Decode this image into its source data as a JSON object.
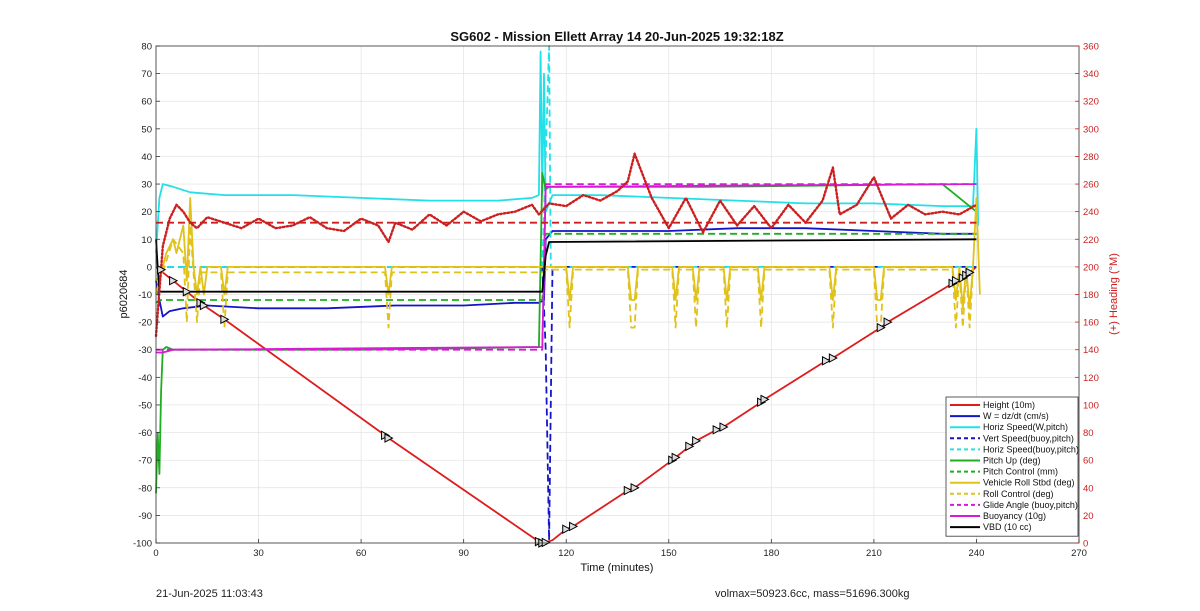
{
  "footer": {
    "timestamp": "21-Jun-2025 11:03:43",
    "volmax": "volmax=50923.6cc, mass=51696.300kg"
  },
  "chart_data": {
    "type": "line",
    "title": "SG602 - Mission Ellett Array 14 20-Jun-2025 19:32:18Z",
    "xlabel": "Time (minutes)",
    "ylabel": "p6020684",
    "y2label": "(+) Heading (°M)",
    "xlim": [
      0,
      270
    ],
    "ylim": [
      -100,
      80
    ],
    "y2lim": [
      0,
      360
    ],
    "xticks": [
      0,
      30,
      60,
      90,
      120,
      150,
      180,
      210,
      240,
      270
    ],
    "yticks": [
      -100,
      -90,
      -80,
      -70,
      -60,
      -50,
      -40,
      -30,
      -20,
      -10,
      0,
      10,
      20,
      30,
      40,
      50,
      60,
      70,
      80
    ],
    "y2ticks": [
      0,
      20,
      40,
      60,
      80,
      100,
      120,
      140,
      160,
      180,
      200,
      220,
      240,
      260,
      280,
      300,
      320,
      340,
      360
    ],
    "grid": true,
    "legend_position": "bottom-right",
    "colors": {
      "red": "#dd1c1c",
      "blue": "#1414c8",
      "cyan": "#22e0e8",
      "green": "#1fae1f",
      "yellow": "#e0c21a",
      "magenta": "#d61ad6",
      "black": "#000000",
      "heading": "#cc1f1f"
    },
    "series": [
      {
        "name": "Height (10m)",
        "color": "red",
        "style": "solid",
        "axis": "left",
        "x": [
          0,
          2,
          5,
          9,
          13,
          14,
          20,
          67,
          68,
          112,
          113,
          114,
          116,
          120,
          122,
          138,
          140,
          151,
          152,
          156,
          158,
          164,
          166,
          177,
          178,
          196,
          198,
          212,
          214,
          233,
          234,
          236,
          237,
          238,
          240
        ],
        "y": [
          0,
          -2,
          -5,
          -9,
          -13,
          -14,
          -19,
          -61,
          -62,
          -99.5,
          -100,
          -99.8,
          -99,
          -95,
          -94,
          -81,
          -80,
          -70,
          -69,
          -65,
          -63,
          -59,
          -58,
          -49,
          -48,
          -34,
          -33,
          -22,
          -20,
          -6,
          -5,
          -4,
          -3,
          -2,
          0
        ]
      },
      {
        "name": "W = dz/dt (cm/s)",
        "color": "blue",
        "style": "solid",
        "axis": "left",
        "x": [
          0,
          1,
          2,
          4,
          8,
          15,
          30,
          50,
          70,
          90,
          105,
          112,
          113.5,
          114,
          116,
          130,
          150,
          170,
          190,
          210,
          230,
          240
        ],
        "y": [
          -5,
          -12,
          -18,
          -16,
          -15,
          -14,
          -15,
          -15,
          -14,
          -14,
          -13,
          -13,
          -12,
          10,
          13,
          13,
          13,
          14,
          14,
          13,
          12,
          12
        ]
      },
      {
        "name": "Horiz Speed(W,pitch)",
        "color": "cyan",
        "style": "solid",
        "axis": "left",
        "x": [
          0,
          1,
          2,
          5,
          10,
          20,
          40,
          60,
          80,
          100,
          110,
          112,
          112.5,
          113,
          113.5,
          114,
          116,
          130,
          150,
          170,
          190,
          210,
          230,
          239,
          240,
          240.5
        ],
        "y": [
          5,
          25,
          30,
          29,
          27,
          26,
          26,
          25,
          24,
          24,
          25,
          26,
          78,
          26,
          70,
          20,
          26,
          26,
          25,
          24,
          23,
          23,
          22,
          22,
          50,
          15
        ]
      },
      {
        "name": "Vert Speed(buoy,pitch)",
        "color": "blue",
        "style": "dashed",
        "axis": "left",
        "x": [
          0,
          113,
          114,
          115,
          116,
          240
        ],
        "y": [
          0,
          0,
          -30,
          -99,
          0,
          0
        ]
      },
      {
        "name": "Horiz Speed(buoy,pitch)",
        "color": "cyan",
        "style": "dashed",
        "axis": "left",
        "x": [
          0,
          113,
          115,
          115.5,
          116,
          240
        ],
        "y": [
          0,
          0,
          80,
          0,
          0,
          0
        ]
      },
      {
        "name": "Pitch Up (deg)",
        "color": "green",
        "style": "solid",
        "axis": "left",
        "x": [
          0,
          0.5,
          1,
          1.5,
          2,
          3,
          5,
          10,
          30,
          60,
          90,
          112,
          113,
          114,
          115,
          130,
          160,
          200,
          230,
          240
        ],
        "y": [
          -82,
          -60,
          -75,
          -45,
          -30,
          -29,
          -30,
          -30,
          -30,
          -30,
          -29.5,
          -29,
          34,
          28,
          29,
          29,
          29,
          29.5,
          30,
          20
        ]
      },
      {
        "name": "Pitch Control (mm)",
        "color": "green",
        "style": "dashed",
        "axis": "left",
        "x": [
          0,
          1,
          3,
          113,
          114,
          240
        ],
        "y": [
          -13,
          -12,
          -12,
          -12,
          12,
          12
        ]
      },
      {
        "name": "Vehicle Roll Stbd (deg)",
        "color": "yellow",
        "style": "solid",
        "axis": "left",
        "x": [
          0,
          2,
          3,
          5,
          6,
          8,
          9,
          10,
          11,
          12,
          13,
          14,
          15,
          19,
          20,
          21,
          67,
          68,
          69,
          113,
          114,
          120,
          121,
          122,
          138,
          139,
          140,
          141,
          151,
          152,
          153,
          157,
          158,
          159,
          166,
          167,
          168,
          176,
          177,
          178,
          197,
          198,
          199,
          210,
          211,
          212,
          213,
          233,
          234,
          235,
          236,
          237,
          238,
          239,
          240,
          241
        ],
        "y": [
          -10,
          0,
          5,
          10,
          5,
          15,
          -5,
          25,
          0,
          -10,
          0,
          -10,
          0,
          0,
          -10,
          0,
          0,
          -10,
          0,
          0,
          0,
          0,
          -12,
          0,
          0,
          -12,
          -12,
          0,
          0,
          -12,
          0,
          0,
          -12,
          0,
          0,
          -12,
          0,
          0,
          -12,
          0,
          0,
          -12,
          0,
          0,
          -12,
          -12,
          0,
          0,
          -12,
          0,
          -15,
          0,
          -15,
          0,
          25,
          -10
        ]
      },
      {
        "name": "Roll Control (deg)",
        "color": "yellow",
        "style": "dashed",
        "axis": "left",
        "x": [
          0,
          2,
          5,
          8,
          9,
          10,
          12,
          13,
          15,
          19,
          20,
          21,
          67,
          68,
          69,
          113,
          114,
          120,
          121,
          122,
          138,
          139,
          140,
          141,
          151,
          152,
          153,
          157,
          158,
          159,
          166,
          167,
          168,
          176,
          177,
          178,
          197,
          198,
          199,
          210,
          211,
          212,
          213,
          233,
          234,
          235,
          236,
          237,
          238,
          239,
          240
        ],
        "y": [
          -5,
          -2,
          10,
          5,
          -20,
          15,
          -20,
          -2,
          -2,
          -2,
          -22,
          -2,
          -2,
          -22,
          -2,
          -2,
          -1,
          -1,
          -22,
          -1,
          -1,
          -22,
          -22,
          -1,
          -1,
          -22,
          -1,
          -1,
          -22,
          -1,
          -1,
          -22,
          -1,
          -1,
          -22,
          -1,
          -1,
          -22,
          -1,
          -1,
          -22,
          -22,
          -1,
          -1,
          -22,
          -1,
          -22,
          -1,
          -22,
          -1,
          0
        ]
      },
      {
        "name": "Glide Angle (buoy,pitch)",
        "color": "magenta",
        "style": "dashed",
        "axis": "left",
        "x": [
          0,
          2,
          5,
          113,
          114,
          240
        ],
        "y": [
          -30,
          -30,
          -30,
          -30,
          30,
          30
        ]
      },
      {
        "name": "Buoyancy (10g)",
        "color": "magenta",
        "style": "solid",
        "axis": "left",
        "x": [
          0,
          2,
          5,
          113,
          114,
          240
        ],
        "y": [
          -31,
          -31,
          -30,
          -29,
          29,
          30
        ]
      },
      {
        "name": "VBD (10 cc)",
        "color": "black",
        "style": "solid",
        "axis": "left",
        "x": [
          0,
          0.5,
          1,
          2,
          113,
          114,
          115,
          240
        ],
        "y": [
          10,
          0,
          -9,
          -9,
          -9,
          4,
          9,
          10
        ]
      },
      {
        "name": "",
        "color": "heading",
        "style": "dotted",
        "axis": "right",
        "x": [
          0,
          2,
          4,
          6,
          8,
          10,
          12,
          15,
          20,
          25,
          30,
          35,
          40,
          45,
          50,
          55,
          60,
          65,
          68,
          70,
          75,
          80,
          85,
          90,
          95,
          100,
          105,
          110,
          112,
          115,
          120,
          125,
          130,
          135,
          138,
          140,
          145,
          150,
          155,
          160,
          165,
          170,
          175,
          180,
          185,
          190,
          195,
          198,
          200,
          205,
          210,
          215,
          220,
          225,
          230,
          235,
          240
        ],
        "y": [
          150,
          215,
          235,
          245,
          240,
          232,
          228,
          236,
          232,
          228,
          235,
          228,
          230,
          236,
          228,
          226,
          235,
          230,
          218,
          232,
          227,
          238,
          230,
          240,
          233,
          238,
          240,
          245,
          238,
          246,
          244,
          252,
          248,
          255,
          262,
          282,
          250,
          228,
          250,
          225,
          248,
          230,
          244,
          228,
          245,
          232,
          248,
          272,
          238,
          245,
          265,
          235,
          245,
          238,
          240,
          238,
          245
        ]
      },
      {
        "name": "",
        "color": "heading",
        "style": "dashed",
        "axis": "right",
        "x": [
          0,
          113,
          240
        ],
        "y": [
          232,
          232,
          232
        ]
      }
    ],
    "markers": {
      "color": "black",
      "x": [
        1.5,
        5,
        9,
        13,
        14,
        20,
        67,
        68,
        112,
        113,
        114,
        120,
        122,
        138,
        140,
        151,
        152,
        156,
        158,
        164,
        166,
        177,
        178,
        196,
        198,
        212,
        214,
        233,
        234,
        236,
        237,
        238
      ],
      "y": [
        -1,
        -5,
        -9,
        -13,
        -14,
        -19,
        -61,
        -62,
        -99.5,
        -100,
        -99.8,
        -95,
        -94,
        -81,
        -80,
        -70,
        -69,
        -65,
        -63,
        -59,
        -58,
        -49,
        -48,
        -34,
        -33,
        -22,
        -20,
        -6,
        -5,
        -4,
        -3,
        -2
      ]
    }
  }
}
